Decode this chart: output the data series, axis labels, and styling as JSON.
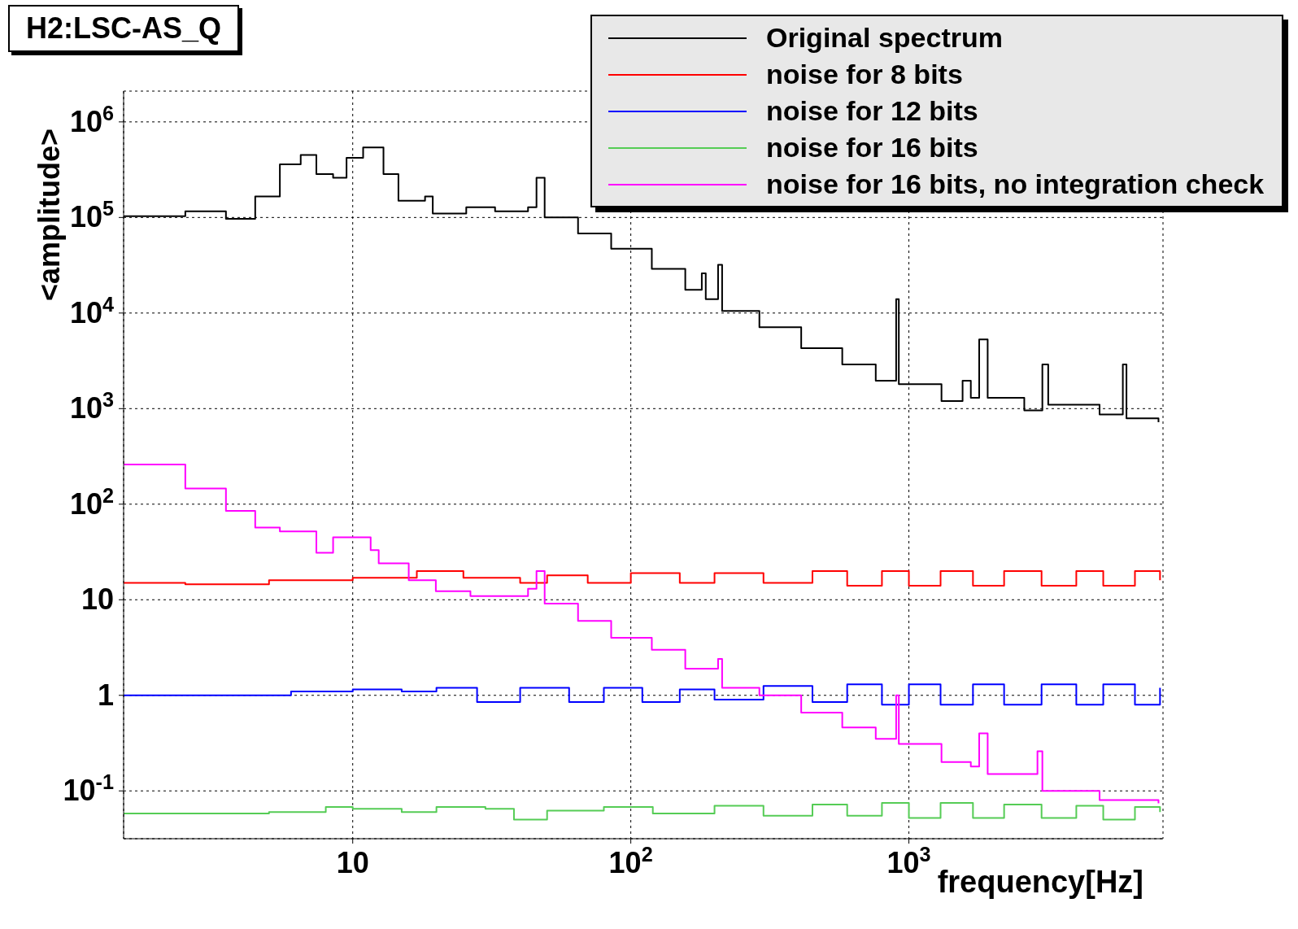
{
  "chart_data": {
    "type": "step",
    "title": "H2:LSC-AS_Q",
    "xlabel": "frequency[Hz]",
    "ylabel": "<amplitude>",
    "log": "xy",
    "grid": true,
    "legend": "top right",
    "marker": "none",
    "line_style": "solid",
    "xlim": [
      1.5,
      8200
    ],
    "xticks": [
      {
        "value": 10,
        "label": "10"
      },
      {
        "value": 100,
        "label": "10$^{2}$"
      },
      {
        "value": 1000,
        "label": "10$^{3}$"
      }
    ],
    "ylim": [
      0.0316,
      2100000
    ],
    "yticks": [
      {
        "value": 0.1,
        "label": "10$^{-1}$"
      },
      {
        "value": 1,
        "label": "1"
      },
      {
        "value": 10,
        "label": "10"
      },
      {
        "value": 100,
        "label": "10$^{2}$"
      },
      {
        "value": 1000,
        "label": "10$^{3}$"
      },
      {
        "value": 10000,
        "label": "10$^{4}$"
      },
      {
        "value": 100000,
        "label": "10$^{5}$"
      },
      {
        "value": 1000000,
        "label": "10$^{6}$"
      }
    ],
    "series": [
      {
        "name": "Original spectrum",
        "color": "#000000",
        "x": [
          1.5,
          2.5,
          3.5,
          4.46,
          5.47,
          6.5,
          7.4,
          8.5,
          9.5,
          10.9,
          12.9,
          14.6,
          18.2,
          19.4,
          25.6,
          32.5,
          42.7,
          45.8,
          49,
          64.6,
          85,
          119,
          157,
          180,
          186,
          206,
          213,
          290,
          410,
          576,
          760,
          900,
          920,
          1310,
          1560,
          1670,
          1790,
          1920,
          2600,
          3020,
          3170,
          4850,
          5880,
          6060,
          7900
        ],
        "values": [
          103000,
          116000,
          97000,
          166000,
          360000,
          450000,
          285000,
          260000,
          420000,
          540000,
          285000,
          150000,
          166000,
          110000,
          128000,
          116000,
          128000,
          260000,
          100000,
          68000,
          47000,
          29000,
          17500,
          26000,
          14000,
          32000,
          10500,
          7100,
          4300,
          2900,
          1960,
          14000,
          1800,
          1200,
          1960,
          1300,
          5300,
          1300,
          960,
          2900,
          1100,
          870,
          2900,
          790,
          720
        ]
      },
      {
        "name": "noise for 8 bits",
        "color": "#ff0000",
        "x": [
          1.5,
          2.5,
          5,
          10,
          17,
          25,
          40,
          50,
          70,
          100,
          150,
          200,
          300,
          450,
          600,
          800,
          1000,
          1300,
          1700,
          2200,
          3000,
          4000,
          5000,
          6500,
          8000
        ],
        "values": [
          15,
          14.5,
          16,
          17,
          20,
          17,
          15,
          18,
          15,
          19,
          15,
          19,
          15,
          20,
          14,
          20,
          14,
          20,
          14,
          20,
          14,
          20,
          14,
          20,
          16
        ]
      },
      {
        "name": "noise for 12 bits",
        "color": "#0000ff",
        "x": [
          1.5,
          3,
          6,
          10,
          15,
          20,
          28,
          40,
          60,
          80,
          110,
          150,
          200,
          300,
          450,
          600,
          800,
          1000,
          1300,
          1700,
          2200,
          3000,
          4000,
          5000,
          6500,
          8000
        ],
        "values": [
          1,
          1,
          1.1,
          1.15,
          1.1,
          1.2,
          0.85,
          1.2,
          0.85,
          1.2,
          0.85,
          1.15,
          0.9,
          1.25,
          0.85,
          1.3,
          0.8,
          1.3,
          0.8,
          1.3,
          0.8,
          1.3,
          0.8,
          1.3,
          0.8,
          1.2
        ]
      },
      {
        "name": "noise for 16 bits",
        "color": "#55cc55",
        "x": [
          1.5,
          3,
          5,
          8,
          10,
          15,
          20,
          30,
          38,
          50,
          80,
          120,
          200,
          300,
          450,
          600,
          800,
          1000,
          1300,
          1700,
          2200,
          3000,
          4000,
          5000,
          6500,
          8000
        ],
        "values": [
          0.058,
          0.058,
          0.06,
          0.068,
          0.065,
          0.06,
          0.068,
          0.065,
          0.05,
          0.062,
          0.068,
          0.058,
          0.07,
          0.055,
          0.072,
          0.055,
          0.075,
          0.052,
          0.075,
          0.052,
          0.072,
          0.052,
          0.07,
          0.05,
          0.068,
          0.06
        ]
      },
      {
        "name": "noise for 16 bits, no integration check",
        "color": "#ff00ff",
        "x": [
          1.5,
          2.5,
          3.5,
          4.46,
          5.47,
          7.4,
          8.5,
          11.6,
          12.4,
          15.9,
          19.9,
          26.5,
          32.5,
          42.7,
          45.8,
          49,
          64.6,
          85,
          119,
          157,
          206,
          213,
          290,
          410,
          576,
          760,
          900,
          920,
          1310,
          1670,
          1790,
          1920,
          2900,
          3020,
          4850,
          7900
        ],
        "values": [
          260,
          146,
          85,
          57,
          52,
          31,
          45,
          33,
          24,
          16,
          12.3,
          10.9,
          10.9,
          13,
          20,
          9.1,
          6,
          4,
          3,
          1.9,
          2.4,
          1.2,
          1,
          0.66,
          0.46,
          0.35,
          1,
          0.31,
          0.2,
          0.18,
          0.4,
          0.15,
          0.26,
          0.1,
          0.08,
          0.074
        ]
      }
    ]
  }
}
